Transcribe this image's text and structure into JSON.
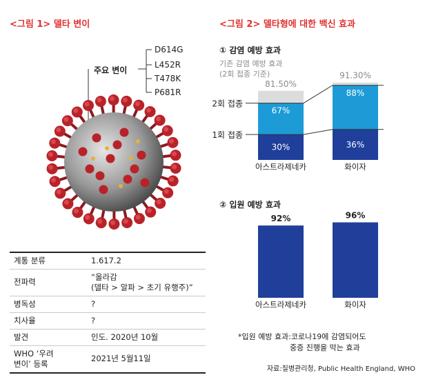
{
  "figure1": {
    "title": "<그림 1> 델타 변이",
    "main_mutation_label": "주요 변이",
    "mutations": [
      "D614G",
      "L452R",
      "T478K",
      "P681R"
    ],
    "colors": {
      "spike": "#b8232a",
      "body": "#9a9a9a"
    }
  },
  "table": {
    "rows": [
      {
        "key": "계통 분류",
        "value": "1.617.2"
      },
      {
        "key": "전파력",
        "value": "“올라감\n(델타 > 알파 > 초기 유행주)”"
      },
      {
        "key": "병독성",
        "value": "?"
      },
      {
        "key": "치사율",
        "value": "?"
      },
      {
        "key": "발견",
        "value": "인도. 2020년 10월"
      },
      {
        "key": "WHO ‘우려\n변이’ 등록",
        "value": "2021년 5월11일"
      }
    ]
  },
  "figure2": {
    "title": "<그림 2> 델타형에 대한 백신 효과",
    "source": "자료:질병관리청, Public Health England, WHO",
    "footnote_line1": "*입원 예방 효과:코로나19에 감염되어도",
    "footnote_line2": "중증 진행을 막는 효과"
  },
  "chart_data": [
    {
      "type": "bar",
      "stacked": true,
      "title": "① 감염 예방 효과",
      "note_lines": [
        "기존 감염 예방 효과",
        "(2회 접종 기준)"
      ],
      "categories": [
        "아스트라제네카",
        "화이자"
      ],
      "series": [
        {
          "name": "1회 접종",
          "values": [
            30,
            36
          ],
          "labels": [
            "30%",
            "36%"
          ]
        },
        {
          "name": "2회 접종",
          "values": [
            37,
            52
          ],
          "labels": [
            "67%",
            "88%"
          ]
        }
      ],
      "reference_values": [
        81.5,
        91.3
      ],
      "reference_labels": [
        "81.50%",
        "91.30%"
      ],
      "row_labels": [
        "2회 접종",
        "1회 접종"
      ],
      "ylim": [
        0,
        100
      ],
      "colors": {
        "dose1": "#1f3f9b",
        "dose2": "#1c9bd7",
        "reference": "#dcdcdc"
      }
    },
    {
      "type": "bar",
      "title": "② 입원 예방 효과",
      "categories": [
        "아스트라제네카",
        "화이자"
      ],
      "values": [
        92,
        96
      ],
      "labels": [
        "92%",
        "96%"
      ],
      "ylim": [
        0,
        100
      ],
      "colors": {
        "bar": "#1f3f9b"
      }
    }
  ]
}
